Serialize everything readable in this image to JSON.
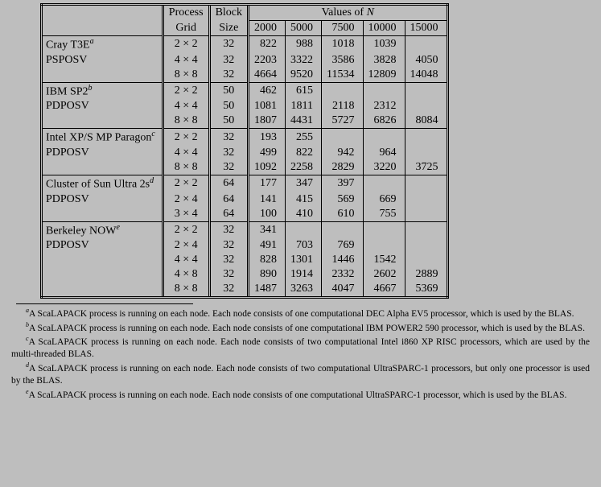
{
  "header": {
    "col_process": "Process",
    "col_grid": "Grid",
    "col_block": "Block",
    "col_size": "Size",
    "col_values": "Values of",
    "col_values_var": "N",
    "n2000": "2000",
    "n5000": "5000",
    "n7500": "7500",
    "n10000": "10000",
    "n15000": "15000"
  },
  "sections": [
    {
      "title": "Cray T3E",
      "sup": "a",
      "routine": "PSPOSV",
      "rows": [
        {
          "grid": "2 × 2",
          "block": "32",
          "v": [
            "822",
            "988",
            "1018",
            "1039",
            ""
          ]
        },
        {
          "grid": "4 × 4",
          "block": "32",
          "v": [
            "2203",
            "3322",
            "3586",
            "3828",
            "4050"
          ]
        },
        {
          "grid": "8 × 8",
          "block": "32",
          "v": [
            "4664",
            "9520",
            "11534",
            "12809",
            "14048"
          ]
        }
      ]
    },
    {
      "title": "IBM SP2",
      "sup": "b",
      "routine": "PDPOSV",
      "rows": [
        {
          "grid": "2 × 2",
          "block": "50",
          "v": [
            "462",
            "615",
            "",
            "",
            ""
          ]
        },
        {
          "grid": "4 × 4",
          "block": "50",
          "v": [
            "1081",
            "1811",
            "2118",
            "2312",
            ""
          ]
        },
        {
          "grid": "8 × 8",
          "block": "50",
          "v": [
            "1807",
            "4431",
            "5727",
            "6826",
            "8084"
          ]
        }
      ]
    },
    {
      "title": "Intel XP/S MP Paragon",
      "sup": "c",
      "routine": "PDPOSV",
      "rows": [
        {
          "grid": "2 × 2",
          "block": "32",
          "v": [
            "193",
            "255",
            "",
            "",
            ""
          ]
        },
        {
          "grid": "4 × 4",
          "block": "32",
          "v": [
            "499",
            "822",
            "942",
            "964",
            ""
          ]
        },
        {
          "grid": "8 × 8",
          "block": "32",
          "v": [
            "1092",
            "2258",
            "2829",
            "3220",
            "3725"
          ]
        }
      ]
    },
    {
      "title": "Cluster of Sun Ultra 2s",
      "sup": "d",
      "routine": "PDPOSV",
      "rows": [
        {
          "grid": "2 × 2",
          "block": "64",
          "v": [
            "177",
            "347",
            "397",
            "",
            ""
          ]
        },
        {
          "grid": "2 × 4",
          "block": "64",
          "v": [
            "141",
            "415",
            "569",
            "669",
            ""
          ]
        },
        {
          "grid": "3 × 4",
          "block": "64",
          "v": [
            "100",
            "410",
            "610",
            "755",
            ""
          ]
        }
      ]
    },
    {
      "title": "Berkeley NOW",
      "sup": "e",
      "routine": "PDPOSV",
      "rows": [
        {
          "grid": "2 × 2",
          "block": "32",
          "v": [
            "341",
            "",
            "",
            "",
            ""
          ]
        },
        {
          "grid": "2 × 4",
          "block": "32",
          "v": [
            "491",
            "703",
            "769",
            "",
            ""
          ]
        },
        {
          "grid": "4 × 4",
          "block": "32",
          "v": [
            "828",
            "1301",
            "1446",
            "1542",
            ""
          ]
        },
        {
          "grid": "4 × 8",
          "block": "32",
          "v": [
            "890",
            "1914",
            "2332",
            "2602",
            "2889"
          ]
        },
        {
          "grid": "8 × 8",
          "block": "32",
          "v": [
            "1487",
            "3263",
            "4047",
            "4667",
            "5369"
          ]
        }
      ]
    }
  ],
  "footnotes": {
    "a": "A ScaLAPACK process is running on each node. Each node consists of one computational DEC Alpha EV5 processor, which is used by the BLAS.",
    "b": "A ScaLAPACK process is running on each node. Each node consists of one computational IBM POWER2 590 processor, which is used by the BLAS.",
    "c": "A ScaLAPACK process is running on each node. Each node consists of two computational Intel i860 XP RISC processors, which are used by the multi-threaded BLAS.",
    "d": "A ScaLAPACK process is running on each node. Each node consists of two computational UltraSPARC-1 processors, but only one processor is used by the BLAS.",
    "e": "A ScaLAPACK process is running on each node. Each node consists of one computational UltraSPARC-1 processor, which is used by the BLAS."
  }
}
